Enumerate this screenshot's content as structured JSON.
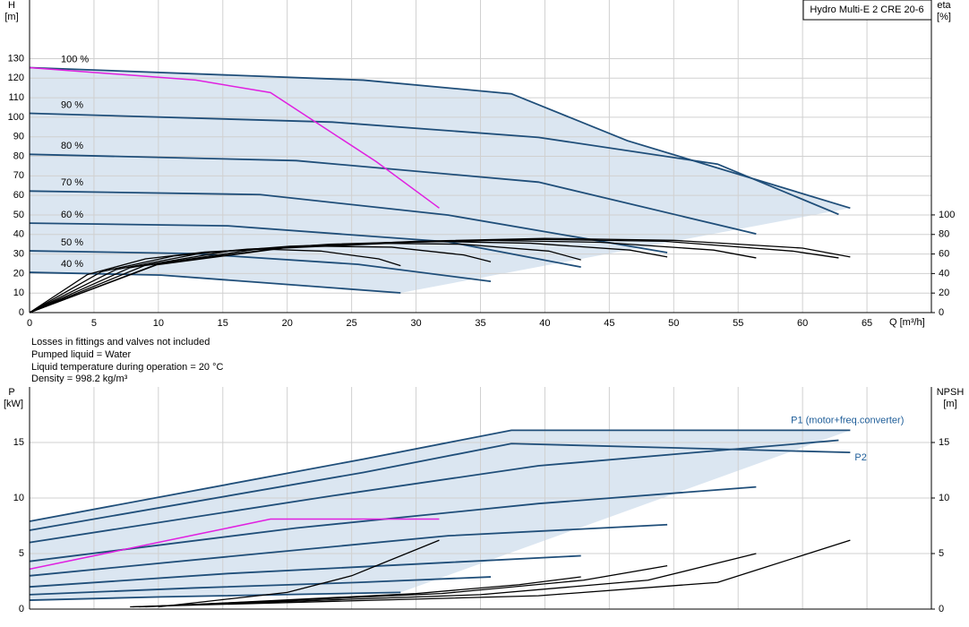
{
  "chart_data": [
    {
      "type": "line",
      "title": "Hydro Multi-E 2 CRE 20-6",
      "y_label": "H",
      "y_unit": "[m]",
      "y2_label": "eta",
      "y2_unit": "[%]",
      "x_label": "Q [m³/h]",
      "xlim": [
        0,
        70
      ],
      "xticks": [
        0,
        5,
        10,
        15,
        20,
        25,
        30,
        35,
        40,
        45,
        50,
        55,
        60,
        65
      ],
      "ylim": [
        0,
        160
      ],
      "yticks": [
        0,
        10,
        20,
        30,
        40,
        50,
        60,
        70,
        80,
        90,
        100,
        110,
        120,
        130
      ],
      "y2lim": [
        0,
        320
      ],
      "y2ticks": [
        0,
        20,
        40,
        60,
        80,
        100
      ],
      "grid": true,
      "series": [
        {
          "name": "100 %",
          "color": "#1f4e79",
          "x": [
            0,
            25.9,
            37.4,
            46.4,
            63.7
          ],
          "values": [
            125.4,
            119,
            112,
            88,
            53.5
          ]
        },
        {
          "name": "90 %",
          "color": "#1f4e79",
          "x": [
            0,
            23.5,
            39.5,
            53.4,
            62.8
          ],
          "values": [
            102,
            97.5,
            89.7,
            76,
            50.3
          ]
        },
        {
          "name": "80 %",
          "color": "#1f4e79",
          "x": [
            0,
            20.7,
            39.5,
            56.4
          ],
          "values": [
            81,
            77.8,
            66.8,
            40.3
          ]
        },
        {
          "name": "70 %",
          "color": "#1f4e79",
          "x": [
            0,
            17.9,
            32.5,
            49.5
          ],
          "values": [
            62.2,
            60.4,
            49.9,
            30.7
          ]
        },
        {
          "name": "60 %",
          "color": "#1f4e79",
          "x": [
            0,
            15.4,
            32.5,
            42.8
          ],
          "values": [
            45.8,
            44.4,
            36.2,
            23.3
          ]
        },
        {
          "name": "50 %",
          "color": "#1f4e79",
          "x": [
            0,
            12.7,
            25.5,
            35.8
          ],
          "values": [
            31.6,
            30.2,
            24.7,
            16
          ]
        },
        {
          "name": "40 %",
          "color": "#1f4e79",
          "x": [
            0,
            10.2,
            28.8
          ],
          "values": [
            20.6,
            19.2,
            10.1
          ]
        },
        {
          "color": "#e020e0",
          "x": [
            0,
            12.9,
            18.7,
            26.9,
            31.8
          ],
          "values": [
            125.4,
            119,
            112.6,
            77.3,
            53.5
          ]
        },
        {
          "color": "#000000",
          "axis": "y2",
          "x": [
            0,
            10,
            20,
            30,
            40,
            50,
            60,
            63.7
          ],
          "values": [
            0,
            50,
            67,
            73,
            76,
            74,
            66,
            57
          ]
        },
        {
          "color": "#000000",
          "axis": "y2",
          "x": [
            0,
            9.9,
            19.7,
            29.6,
            39.4,
            49.3,
            59.2,
            62.8
          ],
          "values": [
            0,
            49,
            66,
            72,
            75,
            73,
            63,
            56
          ]
        },
        {
          "color": "#000000",
          "axis": "y2",
          "x": [
            0,
            8.9,
            17.7,
            26.6,
            35.4,
            44.3,
            53.1,
            56.4
          ],
          "values": [
            0,
            48,
            65,
            71,
            74,
            72,
            64,
            56
          ]
        },
        {
          "color": "#000000",
          "axis": "y2",
          "x": [
            0,
            7.8,
            15.5,
            23.3,
            31.1,
            38.9,
            46.6,
            49.5
          ],
          "values": [
            0,
            46,
            63,
            70,
            73,
            71,
            64,
            57
          ]
        },
        {
          "color": "#000000",
          "axis": "y2",
          "x": [
            0,
            6.7,
            13.4,
            20.2,
            26.9,
            33.6,
            40.3,
            42.8
          ],
          "values": [
            0,
            44,
            61,
            68,
            71,
            70,
            63,
            54
          ]
        },
        {
          "color": "#000000",
          "axis": "y2",
          "x": [
            0,
            5.6,
            11.2,
            16.9,
            22.5,
            28.1,
            33.7,
            35.8
          ],
          "values": [
            0,
            42,
            58,
            65,
            68,
            67,
            59,
            52
          ]
        },
        {
          "color": "#000000",
          "axis": "y2",
          "x": [
            0,
            4.5,
            9,
            13.6,
            18.1,
            22.6,
            27.1,
            28.8
          ],
          "values": [
            0,
            39,
            55,
            62,
            65,
            63,
            55,
            48
          ]
        }
      ]
    },
    {
      "type": "line",
      "notes": [
        "Losses in fittings and valves not included",
        "Pumped liquid = Water",
        "Liquid temperature during operation = 20 °C",
        "Density = 998.2 kg/m³"
      ],
      "y_label": "P",
      "y_unit": "[kW]",
      "y2_label": "NPSH",
      "y2_unit": "[m]",
      "xlim": [
        0,
        70
      ],
      "ylim": [
        0,
        20
      ],
      "yticks": [
        0,
        5,
        10,
        15
      ],
      "y2lim": [
        0,
        20
      ],
      "y2ticks": [
        0,
        5,
        10,
        15
      ],
      "grid": true,
      "series": [
        {
          "name": "P1 (motor+freq.converter)",
          "color": "#1f4e79",
          "x": [
            0,
            25.9,
            37.4,
            63.7
          ],
          "values": [
            7.9,
            13.5,
            16.1,
            16.1
          ]
        },
        {
          "name": "P2",
          "color": "#1f4e79",
          "x": [
            0,
            25.9,
            37.4,
            63.7
          ],
          "values": [
            7.1,
            12.3,
            14.9,
            14.1
          ]
        },
        {
          "color": "#1f4e79",
          "x": [
            0,
            23.5,
            39.5,
            62.8
          ],
          "values": [
            6.0,
            10.2,
            12.9,
            15.2
          ]
        },
        {
          "color": "#1f4e79",
          "x": [
            0,
            20.7,
            39.5,
            56.4
          ],
          "values": [
            4.3,
            7.3,
            9.5,
            11.0
          ]
        },
        {
          "color": "#1f4e79",
          "x": [
            0,
            17.9,
            32.5,
            49.5
          ],
          "values": [
            3.0,
            5.0,
            6.6,
            7.6
          ]
        },
        {
          "color": "#1f4e79",
          "x": [
            0,
            15.4,
            32.5,
            42.8
          ],
          "values": [
            2.0,
            3.2,
            4.2,
            4.8
          ]
        },
        {
          "color": "#1f4e79",
          "x": [
            0,
            12.7,
            25.5,
            35.8
          ],
          "values": [
            1.3,
            1.9,
            2.4,
            2.9
          ]
        },
        {
          "color": "#1f4e79",
          "x": [
            0,
            10.2,
            28.8
          ],
          "values": [
            0.8,
            1.1,
            1.5
          ]
        },
        {
          "color": "#e020e0",
          "x": [
            0,
            12.9,
            18.7,
            31.8
          ],
          "values": [
            3.6,
            6.7,
            8.1,
            8.1
          ]
        },
        {
          "color": "#000000",
          "axis": "y2",
          "x": [
            7.8,
            39.5,
            53.4,
            63.7
          ],
          "values": [
            0.2,
            1.2,
            2.4,
            6.2
          ]
        },
        {
          "color": "#000000",
          "axis": "y2",
          "x": [
            8,
            35,
            48,
            56.4
          ],
          "values": [
            0.2,
            1.3,
            2.6,
            5.0
          ]
        },
        {
          "color": "#000000",
          "axis": "y2",
          "x": [
            8.5,
            32,
            43,
            49.5
          ],
          "values": [
            0.2,
            1.4,
            2.6,
            3.9
          ]
        },
        {
          "color": "#000000",
          "axis": "y2",
          "x": [
            9,
            30,
            38,
            42.8
          ],
          "values": [
            0.2,
            1.4,
            2.2,
            2.9
          ]
        },
        {
          "color": "#000000",
          "axis": "y2",
          "x": [
            10,
            20,
            25,
            31.8
          ],
          "values": [
            0.2,
            1.5,
            3.0,
            6.2
          ]
        }
      ]
    }
  ]
}
